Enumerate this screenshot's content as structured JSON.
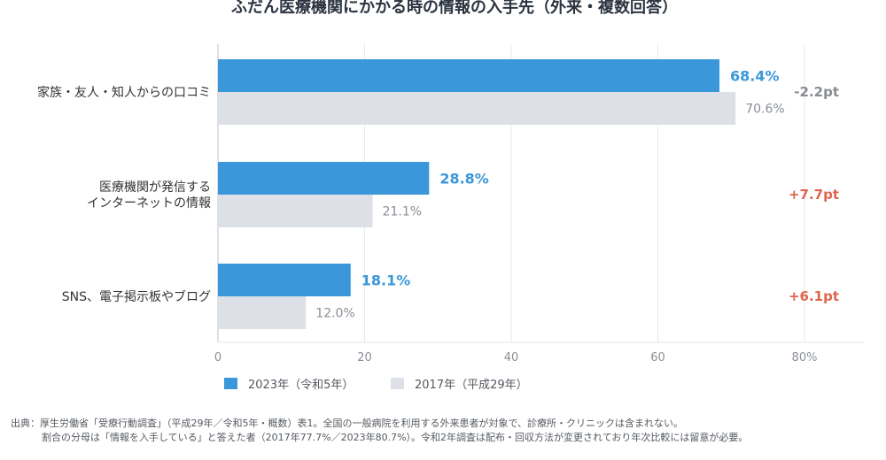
{
  "chart_data": {
    "type": "bar",
    "orientation": "horizontal",
    "title": "ふだん医療機関にかかる時の情報の入手先（外来・複数回答）",
    "categories": [
      [
        "家族・友人・知人からの口コミ"
      ],
      [
        "医療機関が発信する",
        "インターネットの情報"
      ],
      [
        "SNS、電子掲示板やブログ"
      ]
    ],
    "series": [
      {
        "name": "2023年（令和5年）",
        "values": [
          68.4,
          28.8,
          18.1
        ],
        "labels": [
          "68.4%",
          "28.8%",
          "18.1%"
        ],
        "color": "#3a97d9"
      },
      {
        "name": "2017年（平成29年）",
        "values": [
          70.6,
          21.1,
          12.0
        ],
        "labels": [
          "70.6%",
          "21.1%",
          "12.0%"
        ],
        "color": "#dde1e7"
      }
    ],
    "differences": [
      {
        "label": "-2.2pt",
        "color": "#888c91"
      },
      {
        "label": "+7.7pt",
        "color": "#e0654f"
      },
      {
        "label": "+6.1pt",
        "color": "#e0654f"
      }
    ],
    "xlim": [
      0,
      80
    ],
    "xticks": [
      0,
      20,
      40,
      60,
      80
    ],
    "xtick_labels": [
      "0",
      "20",
      "40",
      "60",
      "80%"
    ],
    "grid": true,
    "legend_position": "bottom-left",
    "source_lines": [
      "出典：厚生労働省「受療行動調査」（平成29年／令和5年・概数）表1。全国の一般病院を利用する外来患者が対象で、診療所・クリニックは含まれない。",
      "割合の分母は「情報を入手している」と答えた者（2017年77.7%／2023年80.7%）。令和2年調査は配布・回収方法が変更されており年次比較には留意が必要。"
    ]
  }
}
